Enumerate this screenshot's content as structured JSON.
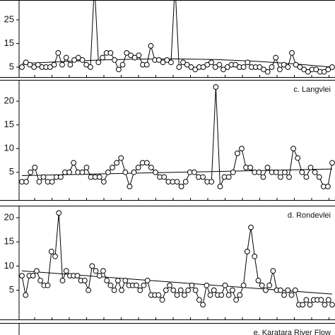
{
  "chart_data": [
    {
      "type": "line",
      "color": "#000",
      "marker": "o",
      "ylim": [
        0.5,
        33.4
      ],
      "yticks": [
        5,
        15,
        25
      ],
      "series": [
        {
          "values": [
            5,
            7,
            6,
            5,
            6,
            5,
            5,
            5,
            6,
            11,
            6,
            9,
            6,
            8,
            9,
            8,
            6,
            5,
            40,
            7,
            9,
            11,
            11,
            8,
            4,
            6,
            11,
            10,
            9,
            10,
            6,
            6,
            14,
            8,
            8,
            7,
            8,
            7,
            40,
            5,
            7,
            6,
            5,
            4,
            5,
            5,
            6,
            7,
            5,
            6,
            4,
            5,
            6,
            6,
            5,
            5,
            7,
            5,
            5,
            5,
            4,
            3,
            5,
            9,
            4,
            6,
            5,
            11,
            6,
            5,
            4,
            3,
            4,
            4,
            3,
            3,
            4,
            5
          ]
        }
      ],
      "trend": {
        "values": [
          6.5,
          7.3,
          8,
          8.4,
          8.5,
          8.2,
          7.5,
          6.4,
          5
        ]
      }
    },
    {
      "type": "line",
      "title": "c. Langvlei",
      "color": "#000",
      "marker": "o",
      "ylim": [
        -1,
        24.5
      ],
      "yticks": [
        5,
        10,
        15,
        20
      ],
      "series": [
        {
          "values": [
            3,
            3,
            5,
            6,
            3,
            4,
            3,
            3,
            4,
            4,
            5,
            5,
            7,
            5,
            5,
            6,
            4,
            4,
            4,
            3,
            5,
            6,
            7,
            8,
            5,
            2,
            5,
            6,
            7,
            7,
            6,
            5,
            4,
            4,
            3,
            3,
            3,
            2,
            3,
            5,
            5,
            4,
            4,
            3,
            3,
            23,
            2,
            4,
            4,
            5,
            9,
            10,
            6,
            6,
            5,
            5,
            4,
            6,
            5,
            5,
            4,
            5,
            4,
            10,
            8,
            5,
            4,
            6,
            5,
            4,
            2,
            2,
            7
          ]
        }
      ],
      "trend": {
        "values": [
          4.3,
          5.7
        ]
      }
    },
    {
      "type": "line",
      "title": "d. Rondevlei",
      "color": "#000",
      "marker": "o",
      "ylim": [
        -1.2,
        22.5
      ],
      "yticks": [
        5,
        10,
        15,
        20
      ],
      "series": [
        {
          "values": [
            8,
            4,
            8,
            8,
            9,
            7,
            6,
            6,
            13,
            12,
            21,
            7,
            9,
            8,
            8,
            8,
            7,
            7,
            5,
            10,
            9,
            8,
            9,
            7,
            6,
            5,
            7,
            5,
            7,
            6,
            6,
            6,
            5,
            6,
            7,
            4,
            4,
            4,
            3,
            5,
            6,
            5,
            4,
            5,
            4,
            5,
            6,
            5,
            3,
            2,
            6,
            4,
            5,
            4,
            4,
            6,
            4,
            5,
            3,
            4,
            6,
            13,
            18,
            12,
            7,
            6,
            5,
            6,
            9,
            5,
            5,
            4,
            5,
            4,
            5,
            2,
            2,
            3,
            2,
            3,
            3,
            3,
            2,
            3,
            2
          ]
        }
      ],
      "trend": {
        "values": [
          9,
          4.2
        ]
      }
    },
    {
      "type": "line",
      "title": "e. Karatara River Flow"
    }
  ]
}
